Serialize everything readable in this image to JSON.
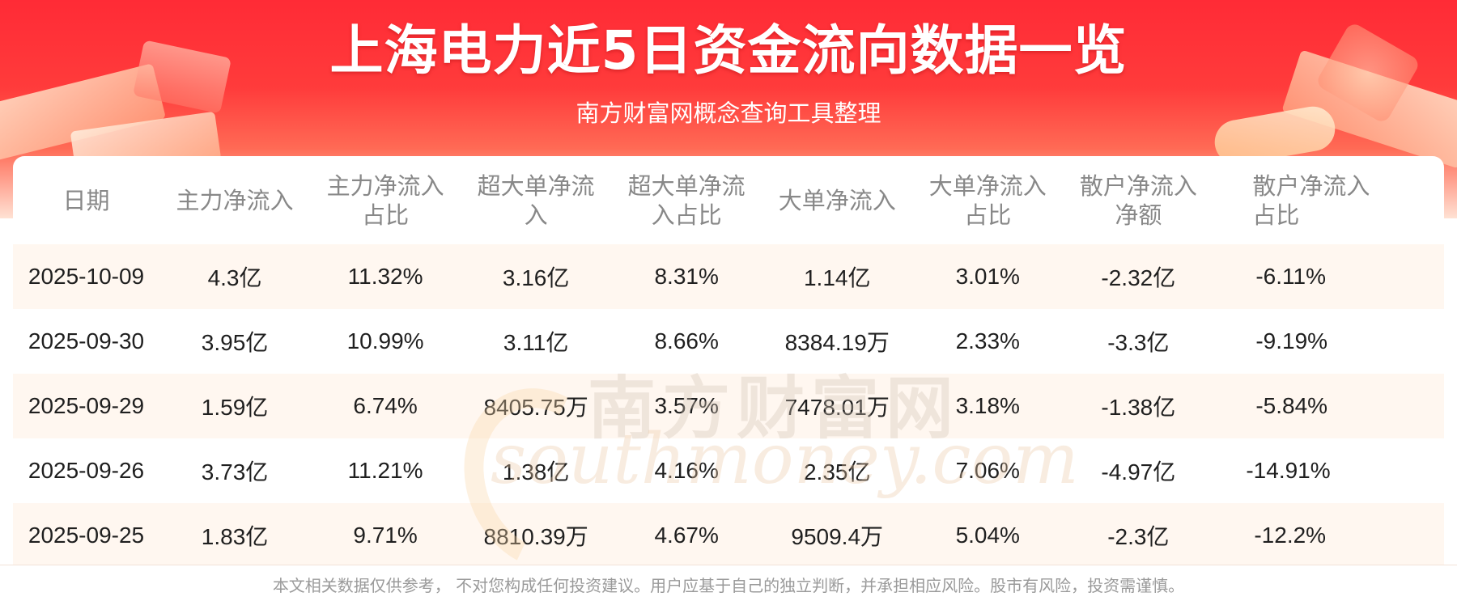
{
  "header": {
    "title": "上海电力近5日资金流向数据一览",
    "subtitle": "南方财富网概念查询工具整理"
  },
  "watermark": {
    "cn": "南方财富网",
    "en": "southmoney.com"
  },
  "table": {
    "columns": [
      "日期",
      "主力净流入",
      "主力净流入\n占比",
      "超大单净流\n入",
      "超大单净流\n入占比",
      "大单净流入",
      "大单净流入\n占比",
      "散户净流入\n净额",
      "散户净流入\n占比"
    ],
    "rows": [
      [
        "2025-10-09",
        "4.3亿",
        "11.32%",
        "3.16亿",
        "8.31%",
        "1.14亿",
        "3.01%",
        "-2.32亿",
        "-6.11%"
      ],
      [
        "2025-09-30",
        "3.95亿",
        "10.99%",
        "3.11亿",
        "8.66%",
        "8384.19万",
        "2.33%",
        "-3.3亿",
        "-9.19%"
      ],
      [
        "2025-09-29",
        "1.59亿",
        "6.74%",
        "8405.75万",
        "3.57%",
        "7478.01万",
        "3.18%",
        "-1.38亿",
        "-5.84%"
      ],
      [
        "2025-09-26",
        "3.73亿",
        "11.21%",
        "1.38亿",
        "4.16%",
        "2.35亿",
        "7.06%",
        "-4.97亿",
        "-14.91%"
      ],
      [
        "2025-09-25",
        "1.83亿",
        "9.71%",
        "8810.39万",
        "4.67%",
        "9509.4万",
        "5.04%",
        "-2.3亿",
        "-12.2%"
      ]
    ]
  },
  "footer": {
    "disclaimer": "本文相关数据仅供参考， 不对您构成任何投资建议。用户应基于自己的独立判断，并承担相应风险。股市有风险，投资需谨慎。"
  },
  "colors": {
    "banner_red": "#ff2b36",
    "row_tint": "#fff6ee",
    "header_text": "#888888"
  }
}
